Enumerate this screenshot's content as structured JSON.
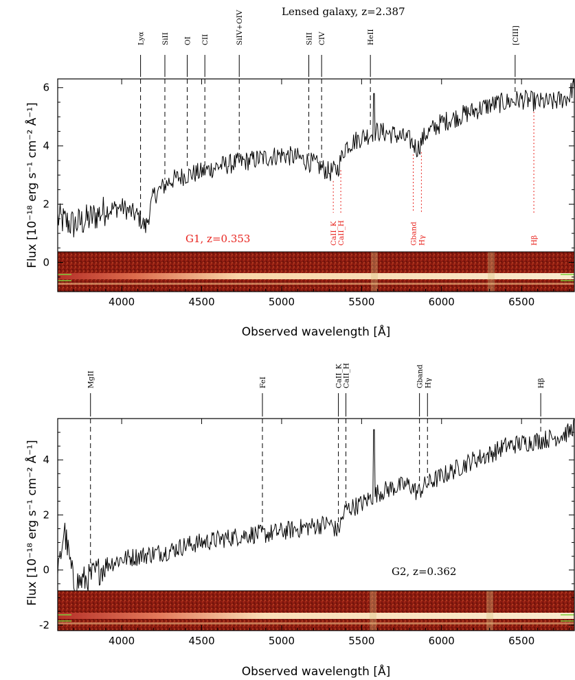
{
  "chart_data": [
    {
      "type": "line",
      "title": "Lensed galaxy, z=2.387",
      "secondary_label": "G1, z=0.353",
      "xlabel": "Observed wavelength [Å]",
      "ylabel": "Flux [10⁻¹⁸ erg s⁻¹ cm⁻² Å⁻¹]",
      "xlim": [
        3600,
        6830
      ],
      "ylim": [
        -1.0,
        6.3
      ],
      "x_ticks": [
        4000,
        4500,
        5000,
        5500,
        6000,
        6500
      ],
      "y_ticks": [
        0,
        2,
        4,
        6
      ],
      "spectrum_trend": {
        "x": [
          3600,
          3700,
          3800,
          3900,
          4000,
          4100,
          4150,
          4200,
          4300,
          4400,
          4500,
          4600,
          4700,
          4800,
          4900,
          5000,
          5100,
          5200,
          5300,
          5350,
          5400,
          5500,
          5600,
          5700,
          5800,
          5850,
          5900,
          6000,
          6100,
          6200,
          6300,
          6400,
          6500,
          6600,
          6700,
          6800,
          6830
        ],
        "y": [
          1.5,
          1.3,
          1.5,
          1.8,
          1.9,
          1.6,
          1.2,
          2.3,
          2.8,
          3.0,
          3.1,
          3.3,
          3.4,
          3.5,
          3.6,
          3.7,
          3.6,
          3.4,
          3.1,
          3.2,
          4.0,
          4.3,
          4.5,
          4.4,
          4.2,
          3.9,
          4.4,
          4.8,
          5.0,
          5.2,
          5.4,
          5.5,
          5.6,
          5.5,
          5.5,
          5.7,
          6.2
        ]
      },
      "emission_spike": {
        "x": 5577,
        "y": 5.8
      },
      "lines": [
        {
          "label": "Lyα",
          "x": 4118
        },
        {
          "label": "SiII",
          "x": 4270
        },
        {
          "label": "OI",
          "x": 4410
        },
        {
          "label": "CII",
          "x": 4520
        },
        {
          "label": "SiIV+OIV",
          "x": 4735
        },
        {
          "label": "SiII",
          "x": 5170
        },
        {
          "label": "CIV",
          "x": 5250
        },
        {
          "label": "HeII",
          "x": 5555
        },
        {
          "label": "[CIII]",
          "x": 6460
        }
      ],
      "foreground_lines": [
        {
          "label": "CaII_K",
          "x": 5323
        },
        {
          "label": "CaII_H",
          "x": 5370
        },
        {
          "label": "Gband",
          "x": 5823
        },
        {
          "label": "Hγ",
          "x": 5874
        },
        {
          "label": "Hβ",
          "x": 6577
        }
      ]
    },
    {
      "type": "line",
      "title": "G2, z=0.362",
      "xlabel": "Observed wavelength [Å]",
      "ylabel": "Flux [10⁻¹⁸ erg s⁻¹ cm⁻² Å⁻¹]",
      "xlim": [
        3600,
        6830
      ],
      "ylim": [
        -2.2,
        5.5
      ],
      "x_ticks": [
        4000,
        4500,
        5000,
        5500,
        6000,
        6500
      ],
      "y_ticks": [
        -2,
        0,
        2,
        4
      ],
      "spectrum_trend": {
        "x": [
          3600,
          3640,
          3700,
          3800,
          3900,
          4000,
          4100,
          4200,
          4300,
          4400,
          4500,
          4600,
          4700,
          4800,
          4900,
          5000,
          5100,
          5200,
          5300,
          5350,
          5400,
          5500,
          5550,
          5600,
          5700,
          5800,
          5850,
          5900,
          6000,
          6100,
          6200,
          6300,
          6400,
          6500,
          6600,
          6700,
          6800,
          6830
        ],
        "y": [
          -0.3,
          1.5,
          -0.5,
          -0.3,
          0.2,
          0.4,
          0.5,
          0.6,
          0.7,
          0.9,
          1.0,
          1.1,
          1.2,
          1.3,
          1.3,
          1.4,
          1.5,
          1.6,
          1.7,
          1.4,
          2.2,
          2.4,
          2.6,
          2.8,
          3.0,
          3.1,
          2.8,
          3.1,
          3.4,
          3.7,
          4.0,
          4.2,
          4.5,
          4.6,
          4.7,
          4.8,
          5.0,
          5.3
        ]
      },
      "emission_spike": {
        "x": 5577,
        "y": 5.1
      },
      "lines": [
        {
          "label": "MgII",
          "x": 3805
        },
        {
          "label": "FeI",
          "x": 4880
        },
        {
          "label": "CaII_K",
          "x": 5355
        },
        {
          "label": "CaII_H",
          "x": 5402
        },
        {
          "label": "Gband",
          "x": 5862
        },
        {
          "label": "Hγ",
          "x": 5912
        },
        {
          "label": "Hβ",
          "x": 6620
        }
      ]
    }
  ],
  "colors": {
    "spectrum": "#000000",
    "foreground_lines": "#e8231e",
    "spectrum2d_bg": "#8a1a10",
    "spectrum2d_trace": "#ffe6a0",
    "marker": "#7ccf3a"
  }
}
